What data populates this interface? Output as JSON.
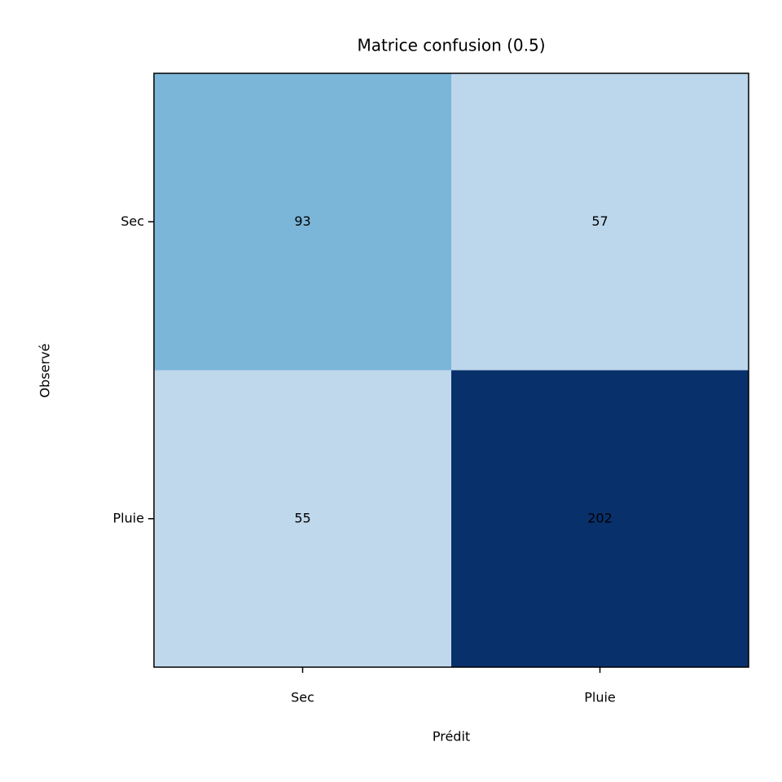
{
  "chart_data": {
    "type": "heatmap",
    "title": "Matrice confusion (0.5)",
    "x_label": "Prédit",
    "y_label": "Observé",
    "x_categories": [
      "Sec",
      "Pluie"
    ],
    "y_categories": [
      "Sec",
      "Pluie"
    ],
    "values": [
      [
        93,
        57
      ],
      [
        55,
        202
      ]
    ],
    "colors": [
      [
        "#7bb6d9",
        "#bcd7eb"
      ],
      [
        "#c0d8ec",
        "#08306b"
      ]
    ],
    "text_color": "#000000"
  }
}
